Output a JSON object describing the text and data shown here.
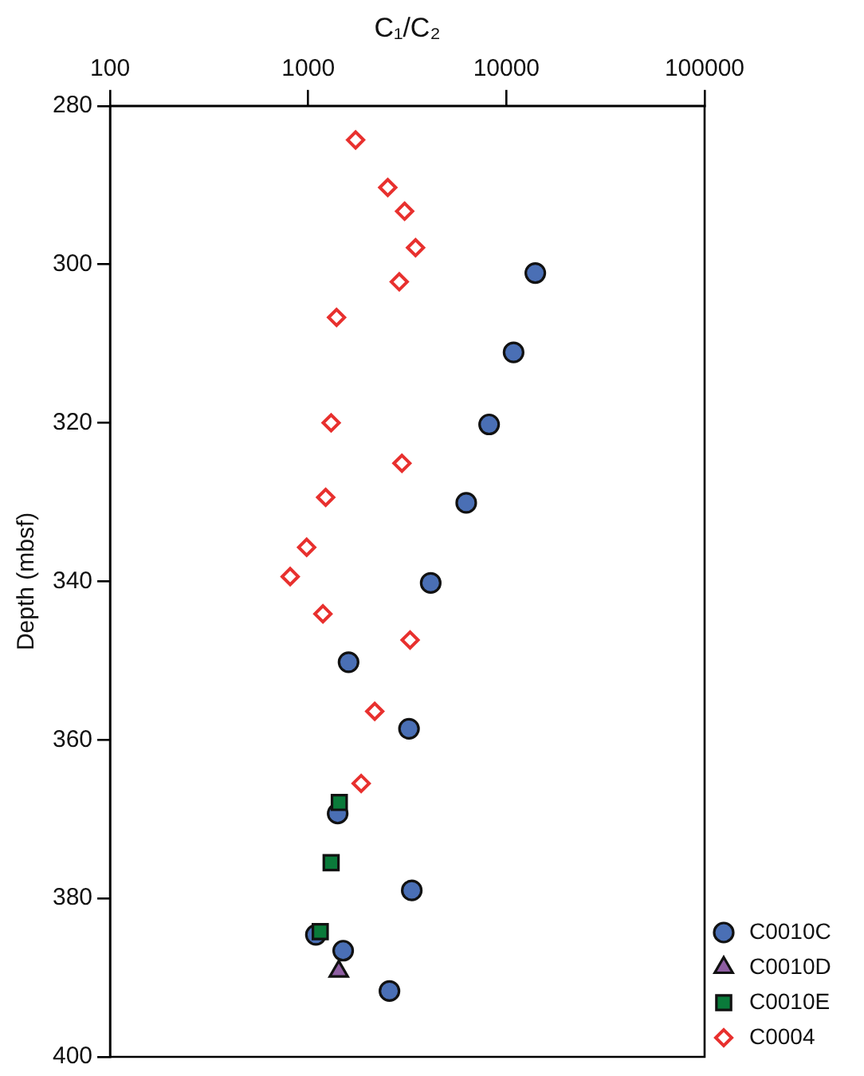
{
  "chart_data": {
    "type": "scatter",
    "xlabel": "C₁/C₂",
    "ylabel": "Depth (mbsf)",
    "log": "x",
    "xlim": [
      100,
      100000
    ],
    "xticks": [
      100,
      1000,
      10000,
      100000
    ],
    "ylim": [
      400,
      280
    ],
    "yticks": [
      280,
      300,
      320,
      340,
      360,
      380,
      400
    ],
    "grid": false,
    "legend": "bottom right",
    "series": [
      {
        "name": "C0010C",
        "color": "#4a6fb5",
        "marker": "circle",
        "x": [
          13990,
          10870,
          8180,
          6270,
          4150,
          1598,
          3225,
          1408,
          3330,
          1093,
          1501,
          2570
        ],
        "values": [
          301.1,
          311.1,
          320.2,
          330.1,
          340.2,
          350.2,
          358.6,
          369.3,
          379.0,
          384.6,
          386.6,
          391.7
        ]
      },
      {
        "name": "C0010D",
        "color": "#8e5ea2",
        "marker": "triangle",
        "x": [
          1426
        ],
        "values": [
          389.2
        ]
      },
      {
        "name": "C0010E",
        "color": "#0a7a3a",
        "marker": "square",
        "x": [
          1435,
          1305,
          1150
        ],
        "values": [
          367.9,
          375.5,
          384.2
        ]
      },
      {
        "name": "C0004",
        "color": "#e8302e",
        "marker": "diamond",
        "x": [
          1734,
          2520,
          3064,
          3480,
          2880,
          1390,
          1305,
          2970,
          1225,
          982,
          811,
          1186,
          3266,
          2166,
          1850
        ],
        "values": [
          284.3,
          290.3,
          293.3,
          297.9,
          302.2,
          306.7,
          320.0,
          325.1,
          329.4,
          335.7,
          339.4,
          344.1,
          347.4,
          356.4,
          365.5
        ]
      }
    ]
  }
}
